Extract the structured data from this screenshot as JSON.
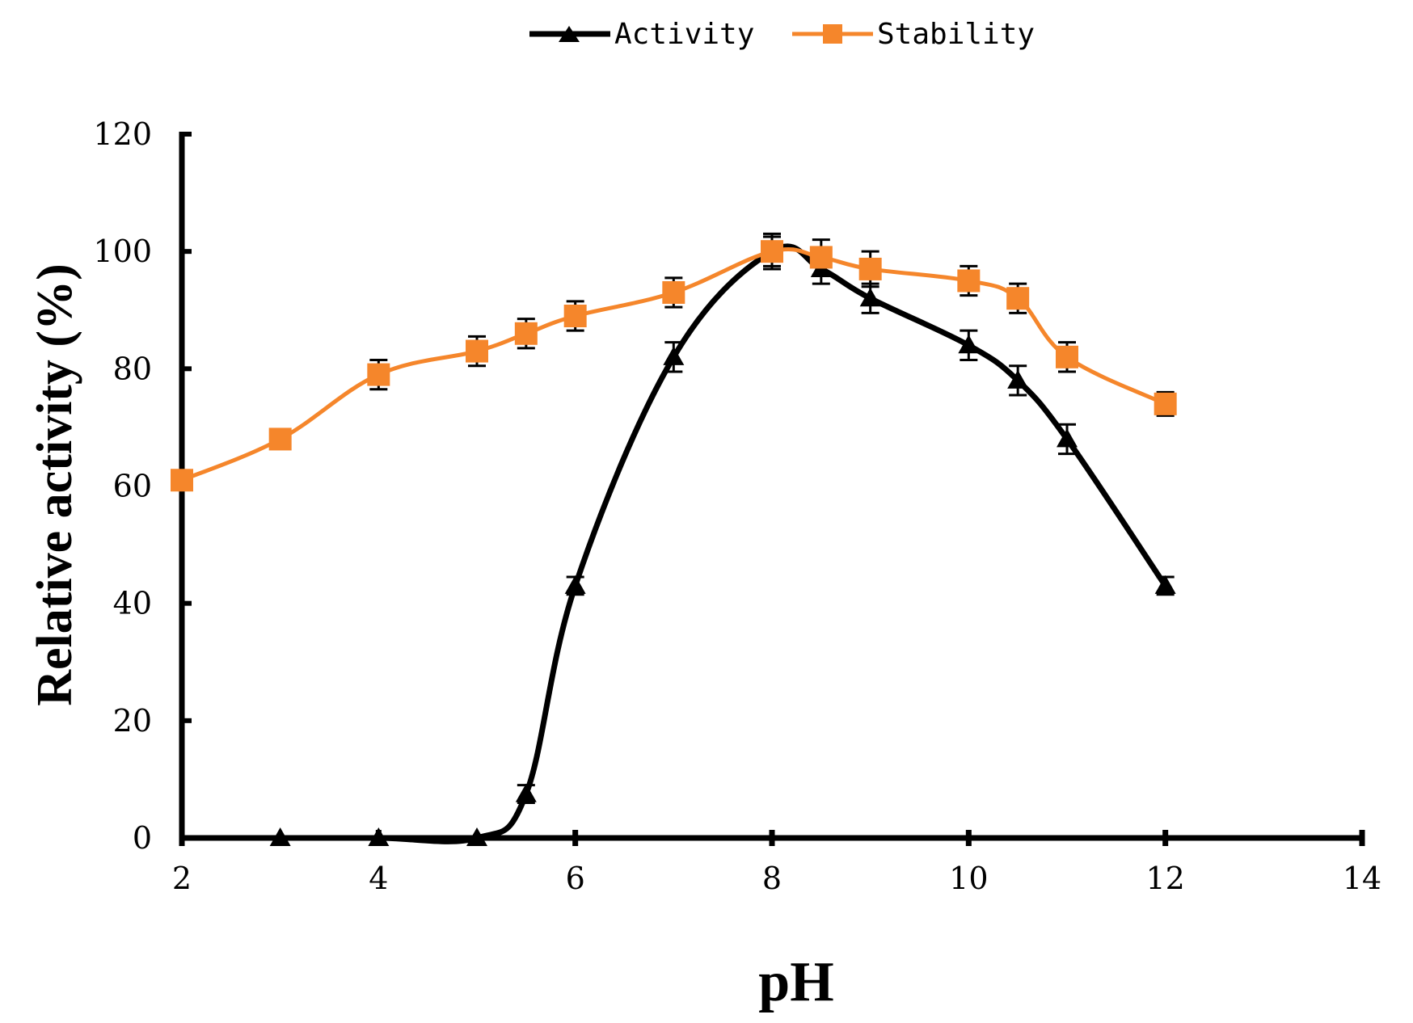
{
  "chart_data": {
    "type": "line",
    "title": "",
    "xlabel": "pH",
    "ylabel": "Relative activity (%)",
    "xlim": [
      2,
      14
    ],
    "ylim": [
      0,
      120
    ],
    "xticks": [
      2,
      4,
      6,
      8,
      10,
      12,
      14
    ],
    "yticks": [
      0,
      20,
      40,
      60,
      80,
      100,
      120
    ],
    "grid": false,
    "legend_position": "top-center",
    "series": [
      {
        "name": "Activity",
        "color": "#000000",
        "marker": "triangle",
        "smooth": true,
        "x": [
          3,
          4,
          5,
          5.5,
          6,
          7,
          8,
          8.5,
          9,
          10,
          10.5,
          11,
          12
        ],
        "y": [
          0,
          0,
          0,
          7.5,
          43,
          82,
          100,
          97,
          92,
          84,
          78,
          68,
          43
        ],
        "error": [
          0,
          0,
          0,
          1.5,
          1.5,
          2.5,
          2.5,
          2.5,
          2.5,
          2.5,
          2.5,
          2.5,
          1.5
        ]
      },
      {
        "name": "Stability",
        "color": "#f5862b",
        "marker": "square",
        "smooth": true,
        "x": [
          2,
          3,
          4,
          5,
          5.5,
          6,
          7,
          8,
          8.5,
          9,
          10,
          10.5,
          11,
          12
        ],
        "y": [
          61,
          68,
          79,
          83,
          86,
          89,
          93,
          100,
          99,
          97,
          95,
          92,
          82,
          74
        ],
        "error": [
          1.5,
          1.5,
          2.5,
          2.5,
          2.5,
          2.5,
          2.5,
          3,
          3,
          3,
          2.5,
          2.5,
          2.5,
          2
        ]
      }
    ]
  }
}
